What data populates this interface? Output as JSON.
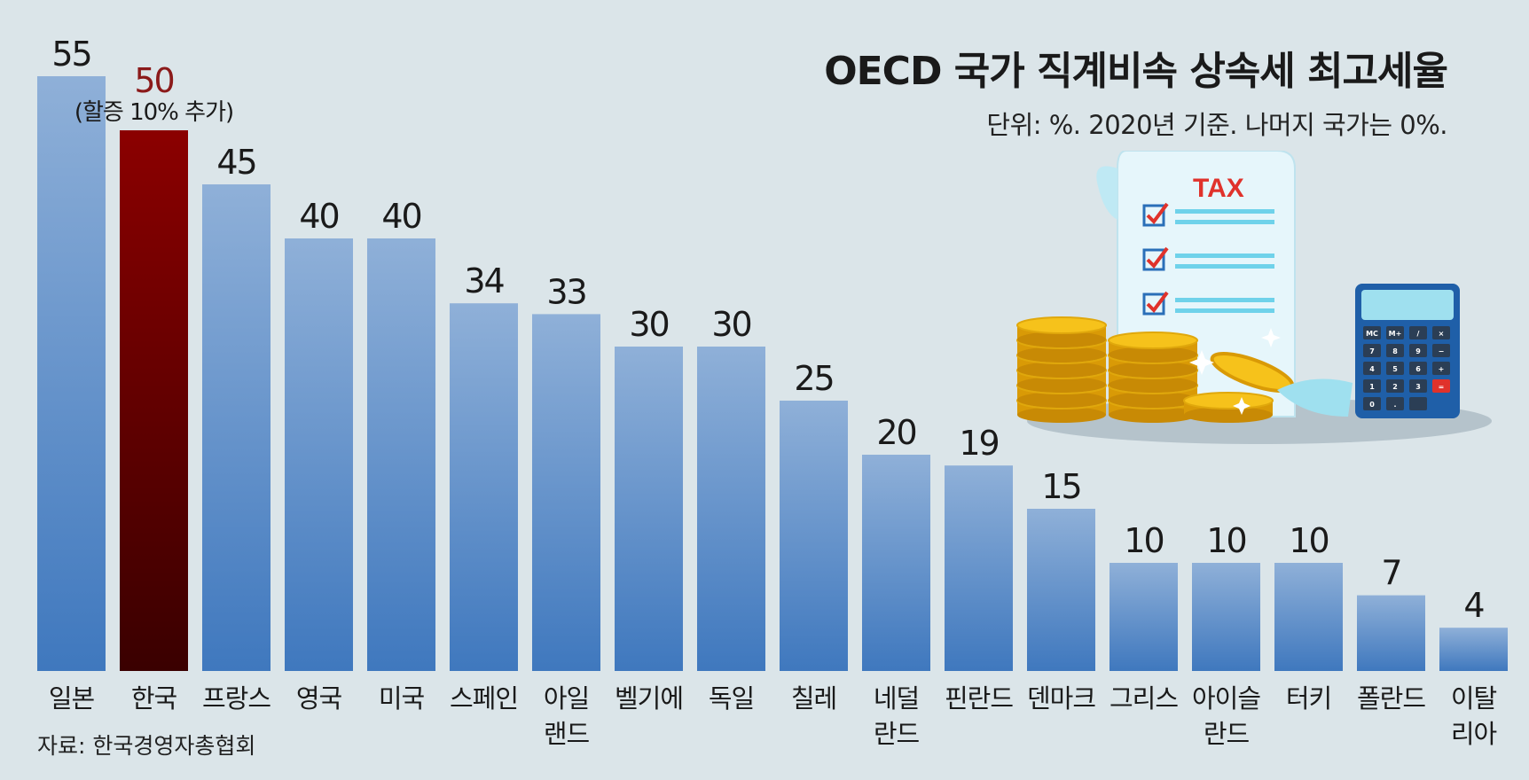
{
  "title": "OECD 국가 직계비속 상속세 최고세율",
  "subtitle": "단위: %. 2020년 기준. 나머지 국가는 0%.",
  "source": "자료: 한국경영자총협회",
  "colors": {
    "background": "#dbe5e9",
    "bar_top": "#8fb0d8",
    "bar_bottom": "#3f78be",
    "highlight_top": "#8b0000",
    "highlight_bottom": "#3a0000",
    "highlight_text": "#8b1a1a",
    "value_text": "#1a1a1a"
  },
  "illustration": {
    "icon": "tax-calculator-coins-icon",
    "tax_label": "TAX",
    "calculator_keys": [
      "MC",
      "M+",
      "/",
      "×",
      "7",
      "8",
      "9",
      "−",
      "4",
      "5",
      "6",
      "+",
      "1",
      "2",
      "3",
      "=",
      "0",
      ".",
      ""
    ]
  },
  "chart_data": {
    "type": "bar",
    "categories": [
      "일본",
      "한국",
      "프랑스",
      "영국",
      "미국",
      "스페인",
      "아일랜드",
      "벨기에",
      "독일",
      "칠레",
      "네덜란드",
      "핀란드",
      "덴마크",
      "그리스",
      "아이슬란드",
      "터키",
      "폴란드",
      "이탈리아"
    ],
    "category_lines": [
      [
        "일본"
      ],
      [
        "한국"
      ],
      [
        "프랑스"
      ],
      [
        "영국"
      ],
      [
        "미국"
      ],
      [
        "스페인"
      ],
      [
        "아일",
        "랜드"
      ],
      [
        "벨기에"
      ],
      [
        "독일"
      ],
      [
        "칠레"
      ],
      [
        "네덜",
        "란드"
      ],
      [
        "핀란드"
      ],
      [
        "덴마크"
      ],
      [
        "그리스"
      ],
      [
        "아이슬",
        "란드"
      ],
      [
        "터키"
      ],
      [
        "폴란드"
      ],
      [
        "이탈",
        "리아"
      ]
    ],
    "values": [
      55,
      50,
      45,
      40,
      40,
      34,
      33,
      30,
      30,
      25,
      20,
      19,
      15,
      10,
      10,
      10,
      7,
      4
    ],
    "highlight": "한국",
    "annotations": [
      {
        "category": "한국",
        "text": "(할증 10% 추가)"
      }
    ],
    "ylim": [
      0,
      55
    ],
    "grid": false,
    "legend": "none"
  }
}
